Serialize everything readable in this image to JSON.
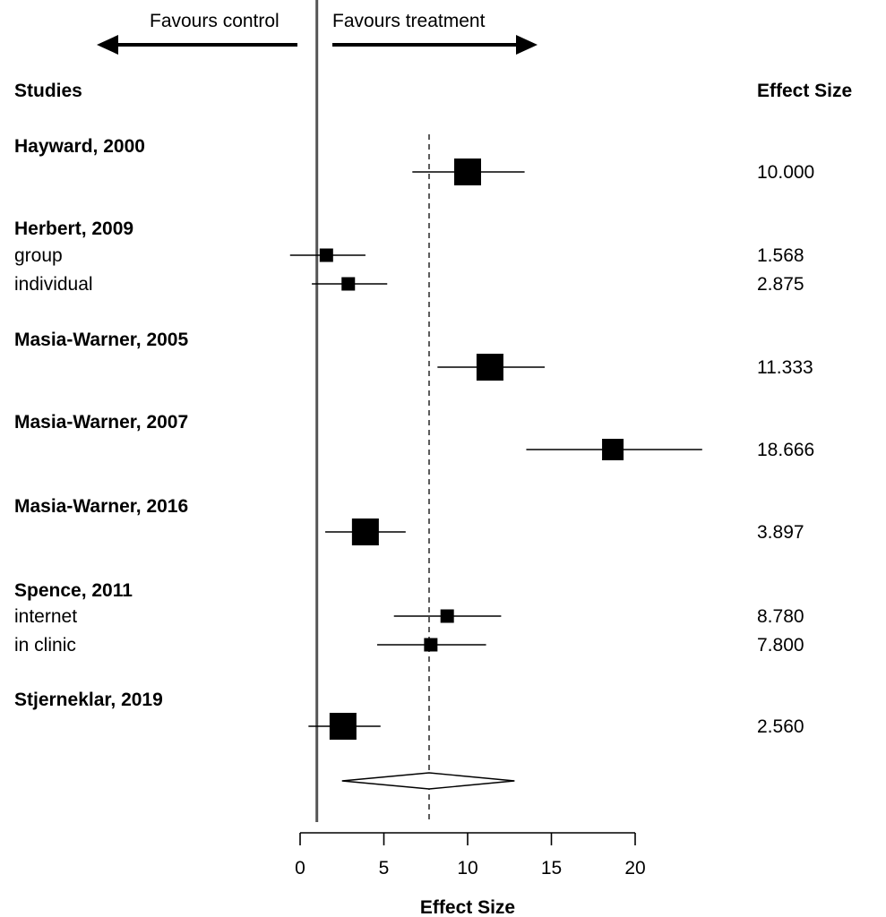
{
  "chart_data": {
    "type": "forest",
    "xlabel": "Effect Size",
    "header_left": "Studies",
    "header_right": "Effect Size",
    "direction_left": "Favours control",
    "direction_right": "Favours treatment",
    "xlim": [
      0,
      20
    ],
    "xticks": [
      0,
      5,
      10,
      15,
      20
    ],
    "null_line": 1,
    "pooled": {
      "estimate": 7.7,
      "ci": [
        2.5,
        12.8
      ]
    },
    "studies": [
      {
        "name": "Hayward, 2000",
        "rows": [
          {
            "label": "",
            "value_text": "10.000",
            "estimate": 10.0,
            "ci": [
              6.7,
              13.4
            ],
            "weight": "large"
          }
        ]
      },
      {
        "name": "Herbert, 2009",
        "rows": [
          {
            "label": "group",
            "value_text": "1.568",
            "estimate": 1.568,
            "ci": [
              -0.6,
              3.9
            ],
            "weight": "small"
          },
          {
            "label": "individual",
            "value_text": "2.875",
            "estimate": 2.875,
            "ci": [
              0.7,
              5.2
            ],
            "weight": "small"
          }
        ]
      },
      {
        "name": "Masia-Warner, 2005",
        "rows": [
          {
            "label": "",
            "value_text": "11.333",
            "estimate": 11.333,
            "ci": [
              8.2,
              14.6
            ],
            "weight": "large"
          }
        ]
      },
      {
        "name": "Masia-Warner, 2007",
        "rows": [
          {
            "label": "",
            "value_text": "18.666",
            "estimate": 18.666,
            "ci": [
              13.5,
              24.0
            ],
            "weight": "medium"
          }
        ]
      },
      {
        "name": "Masia-Warner, 2016",
        "rows": [
          {
            "label": "",
            "value_text": "3.897",
            "estimate": 3.897,
            "ci": [
              1.5,
              6.3
            ],
            "weight": "large"
          }
        ]
      },
      {
        "name": "Spence, 2011",
        "rows": [
          {
            "label": "internet",
            "value_text": "8.780",
            "estimate": 8.78,
            "ci": [
              5.6,
              12.0
            ],
            "weight": "small"
          },
          {
            "label": "in clinic",
            "value_text": "7.800",
            "estimate": 7.8,
            "ci": [
              4.6,
              11.1
            ],
            "weight": "small"
          }
        ]
      },
      {
        "name": "Stjerneklar, 2019",
        "rows": [
          {
            "label": "",
            "value_text": "2.560",
            "estimate": 2.56,
            "ci": [
              0.5,
              4.8
            ],
            "weight": "large"
          }
        ]
      }
    ]
  }
}
